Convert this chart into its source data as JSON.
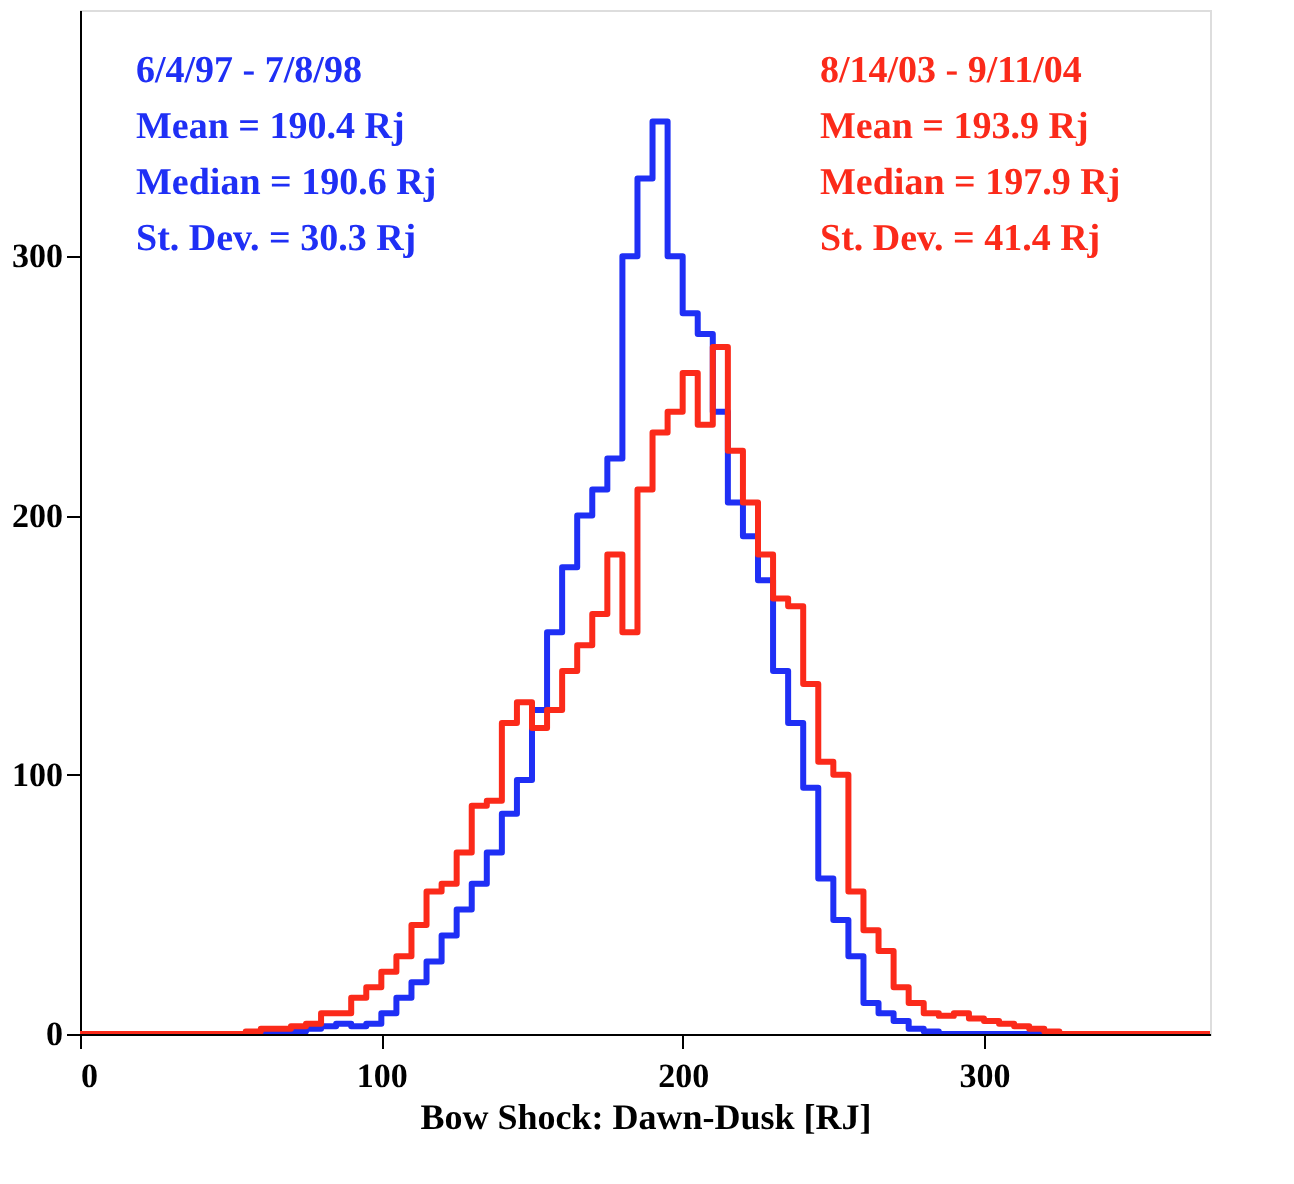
{
  "chart_data": {
    "type": "histogram",
    "xlabel": "Bow Shock: Dawn-Dusk [RJ]",
    "bins": [
      0,
      5,
      10,
      15,
      20,
      25,
      30,
      35,
      40,
      45,
      50,
      55,
      60,
      65,
      70,
      75,
      80,
      85,
      90,
      95,
      100,
      105,
      110,
      115,
      120,
      125,
      130,
      135,
      140,
      145,
      150,
      155,
      160,
      165,
      170,
      175,
      180,
      185,
      190,
      195,
      200,
      205,
      210,
      215,
      220,
      225,
      230,
      235,
      240,
      245,
      250,
      255,
      260,
      265,
      270,
      275,
      280,
      285,
      290,
      295,
      300,
      305,
      310,
      315,
      320,
      325,
      330,
      335,
      340,
      345,
      350,
      355,
      360,
      365,
      370,
      375
    ],
    "series": [
      {
        "name": "6/4/97 - 7/8/98",
        "color": "#1f2ff5",
        "values": [
          0,
          0,
          0,
          0,
          0,
          0,
          0,
          0,
          0,
          0,
          0,
          0,
          0,
          1,
          1,
          2,
          3,
          4,
          3,
          4,
          8,
          14,
          20,
          28,
          38,
          48,
          58,
          70,
          85,
          98,
          125,
          155,
          180,
          200,
          210,
          222,
          300,
          330,
          352,
          300,
          278,
          270,
          240,
          205,
          192,
          175,
          140,
          120,
          95,
          60,
          44,
          30,
          12,
          8,
          5,
          2,
          1,
          0,
          0,
          0,
          0,
          0,
          0,
          0,
          0,
          0,
          0,
          0,
          0,
          0,
          0,
          0,
          0,
          0,
          0
        ]
      },
      {
        "name": "8/14/03 - 9/11/04",
        "color": "#fb2a1a",
        "values": [
          0,
          0,
          0,
          0,
          0,
          0,
          0,
          0,
          0,
          0,
          0,
          1,
          2,
          2,
          3,
          4,
          8,
          8,
          14,
          18,
          24,
          30,
          42,
          55,
          58,
          70,
          88,
          90,
          120,
          128,
          118,
          125,
          140,
          150,
          162,
          185,
          155,
          210,
          232,
          240,
          255,
          235,
          265,
          225,
          205,
          185,
          168,
          165,
          135,
          105,
          100,
          55,
          40,
          32,
          18,
          12,
          8,
          7,
          8,
          6,
          5,
          4,
          3,
          2,
          1,
          0,
          0,
          0,
          0,
          0,
          0,
          0,
          0,
          0,
          0
        ]
      }
    ],
    "annotations": [
      "Mean = 190.4 Rj",
      "Median = 190.6 Rj",
      "St. Dev. = 30.3 Rj",
      "Mean = 193.9 Rj",
      "Median = 197.9 Rj",
      "St. Dev. = 41.4 Rj"
    ],
    "xlim": [
      0,
      375
    ],
    "xticks": [
      0,
      100,
      200,
      300
    ],
    "ylim": [
      0,
      395
    ],
    "yticks": [
      0,
      100,
      200,
      300
    ],
    "grid": false
  }
}
